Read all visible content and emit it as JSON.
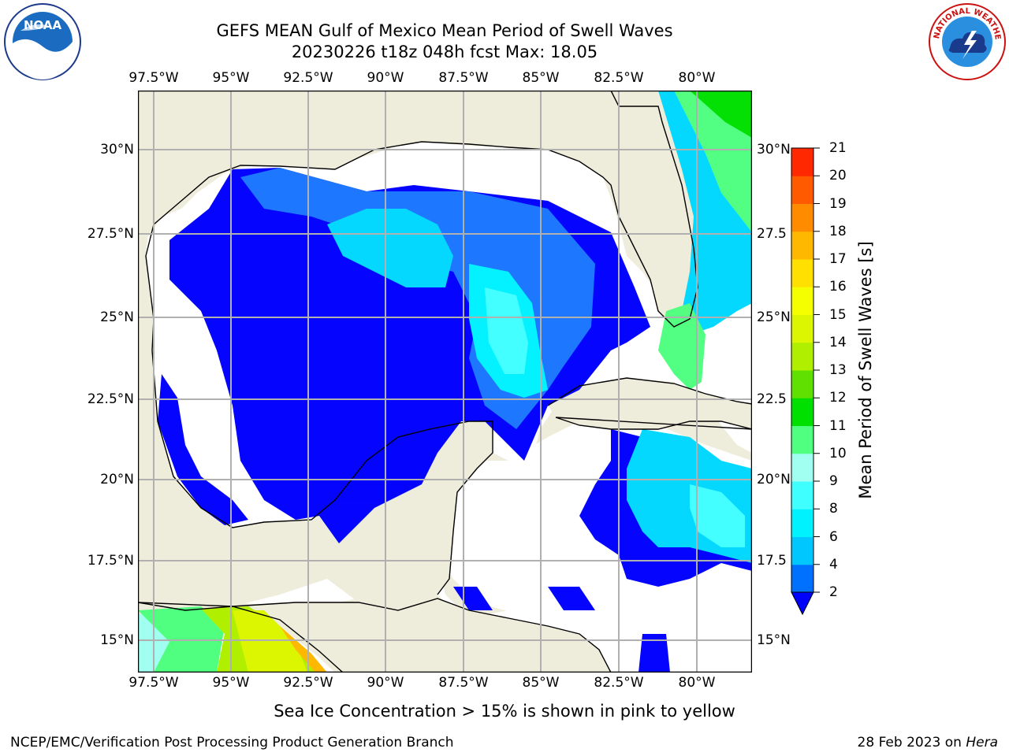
{
  "header": {
    "title_line1": "GEFS MEAN Gulf of Mexico Mean Period of Swell Waves",
    "title_line2": "20230226 t18z 048h fcst   Max: 18.05"
  },
  "logos": {
    "noaa": {
      "icon": "noaa-logo",
      "text": "NOAA"
    },
    "nws": {
      "icon": "nws-logo",
      "text": "NATIONAL WEATHER SERVICE"
    }
  },
  "map": {
    "lon_ticks": [
      "97.5°W",
      "95°W",
      "92.5°W",
      "90°W",
      "87.5°W",
      "85°W",
      "82.5°W",
      "80°W"
    ],
    "lat_ticks_left": [
      "30°N",
      "27.5°N",
      "25°N",
      "22.5°N",
      "20°N",
      "17.5°N",
      "15°N"
    ],
    "lat_ticks_right": [
      "30°N",
      "27.5",
      "25°N",
      "22.5",
      "20°N",
      "17.5",
      "15°N"
    ],
    "colors": {
      "land": "#eeecdb",
      "grid": "#b0b0b0",
      "coast": "#000000"
    }
  },
  "colorbar": {
    "label": "Mean Period of Swell Waves [s]",
    "ticks": [
      "2",
      "4",
      "6",
      "8",
      "9",
      "10",
      "11",
      "12",
      "13",
      "14",
      "15",
      "16",
      "17",
      "18",
      "19",
      "20",
      "21"
    ],
    "colors": [
      "#0070ff",
      "#00c8ff",
      "#00f2ff",
      "#40ffff",
      "#a0fff0",
      "#50ff80",
      "#00e000",
      "#60e000",
      "#b0ef00",
      "#dcf500",
      "#f5ff00",
      "#ffe000",
      "#ffb800",
      "#ff8c00",
      "#ff5a00",
      "#ff2800"
    ],
    "under_color": "#0000ff"
  },
  "footer": {
    "note": "Sea Ice Concentration > 15% is shown in pink to yellow",
    "credit": "NCEP/EMC/Verification Post Processing Product Generation Branch",
    "date": "28 Feb 2023 on",
    "host": "Hera"
  }
}
